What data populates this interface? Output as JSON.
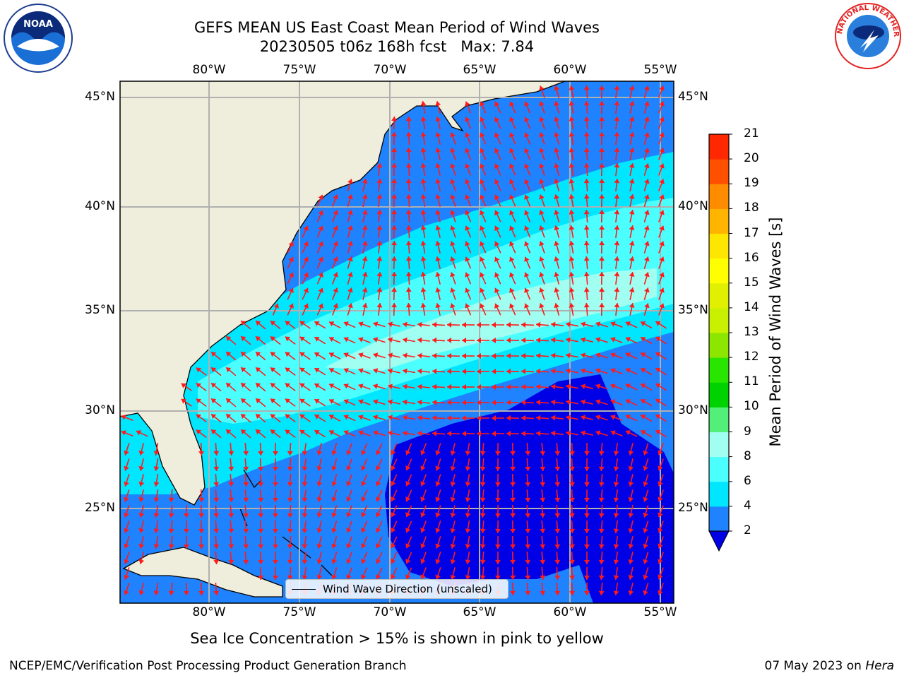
{
  "title": {
    "line1": "GEFS MEAN US East Coast Mean Period of Wind Waves",
    "line2": "20230505 t06z 168h fcst   Max: 7.84"
  },
  "map": {
    "lon_ticks": [
      "80°W",
      "75°W",
      "70°W",
      "65°W",
      "60°W",
      "55°W"
    ],
    "lat_ticks": [
      "45°N",
      "40°N",
      "35°N",
      "30°N",
      "25°N"
    ],
    "extent": {
      "lon": [
        -85,
        -54.2
      ],
      "lat": [
        20.5,
        45.8
      ]
    },
    "gridlines": true,
    "colors": {
      "land": "#efeedc",
      "ocean_2_4": "#1f82ff",
      "ocean_below_2": "#0000e6",
      "ocean_4_6": "#00e6ff",
      "ocean_6_8": "#4cffff",
      "ocean_8_9": "#a0fff0",
      "arrow": "#ff1a1a",
      "grid": "#b0b0b0"
    }
  },
  "legend": {
    "label": "Wind Wave Direction (unscaled)"
  },
  "colorbar": {
    "label": "Mean Period of Wind Waves [s]",
    "ticks": [
      "2",
      "4",
      "6",
      "8",
      "9",
      "10",
      "11",
      "12",
      "13",
      "14",
      "15",
      "16",
      "17",
      "18",
      "19",
      "20",
      "21"
    ],
    "colors": [
      "#1f82ff",
      "#00e6ff",
      "#4cffff",
      "#a0fff0",
      "#52f078",
      "#00d200",
      "#28e600",
      "#8ce600",
      "#c8f000",
      "#e1f000",
      "#ffff00",
      "#ffe600",
      "#ffb400",
      "#ff8c00",
      "#ff5000",
      "#ff2800",
      "#ff0000"
    ],
    "extend_color": "#0000e6"
  },
  "subtitle": "Sea Ice Concentration > 15% is shown in pink to yellow",
  "footer": {
    "left": "NCEP/EMC/Verification Post Processing Product Generation Branch",
    "right_prefix": "07 May 2023 on ",
    "right_host": "Hera"
  },
  "logos": {
    "left_text": "NOAA",
    "right_text": "NATIONAL WEATHER SERVICE"
  }
}
